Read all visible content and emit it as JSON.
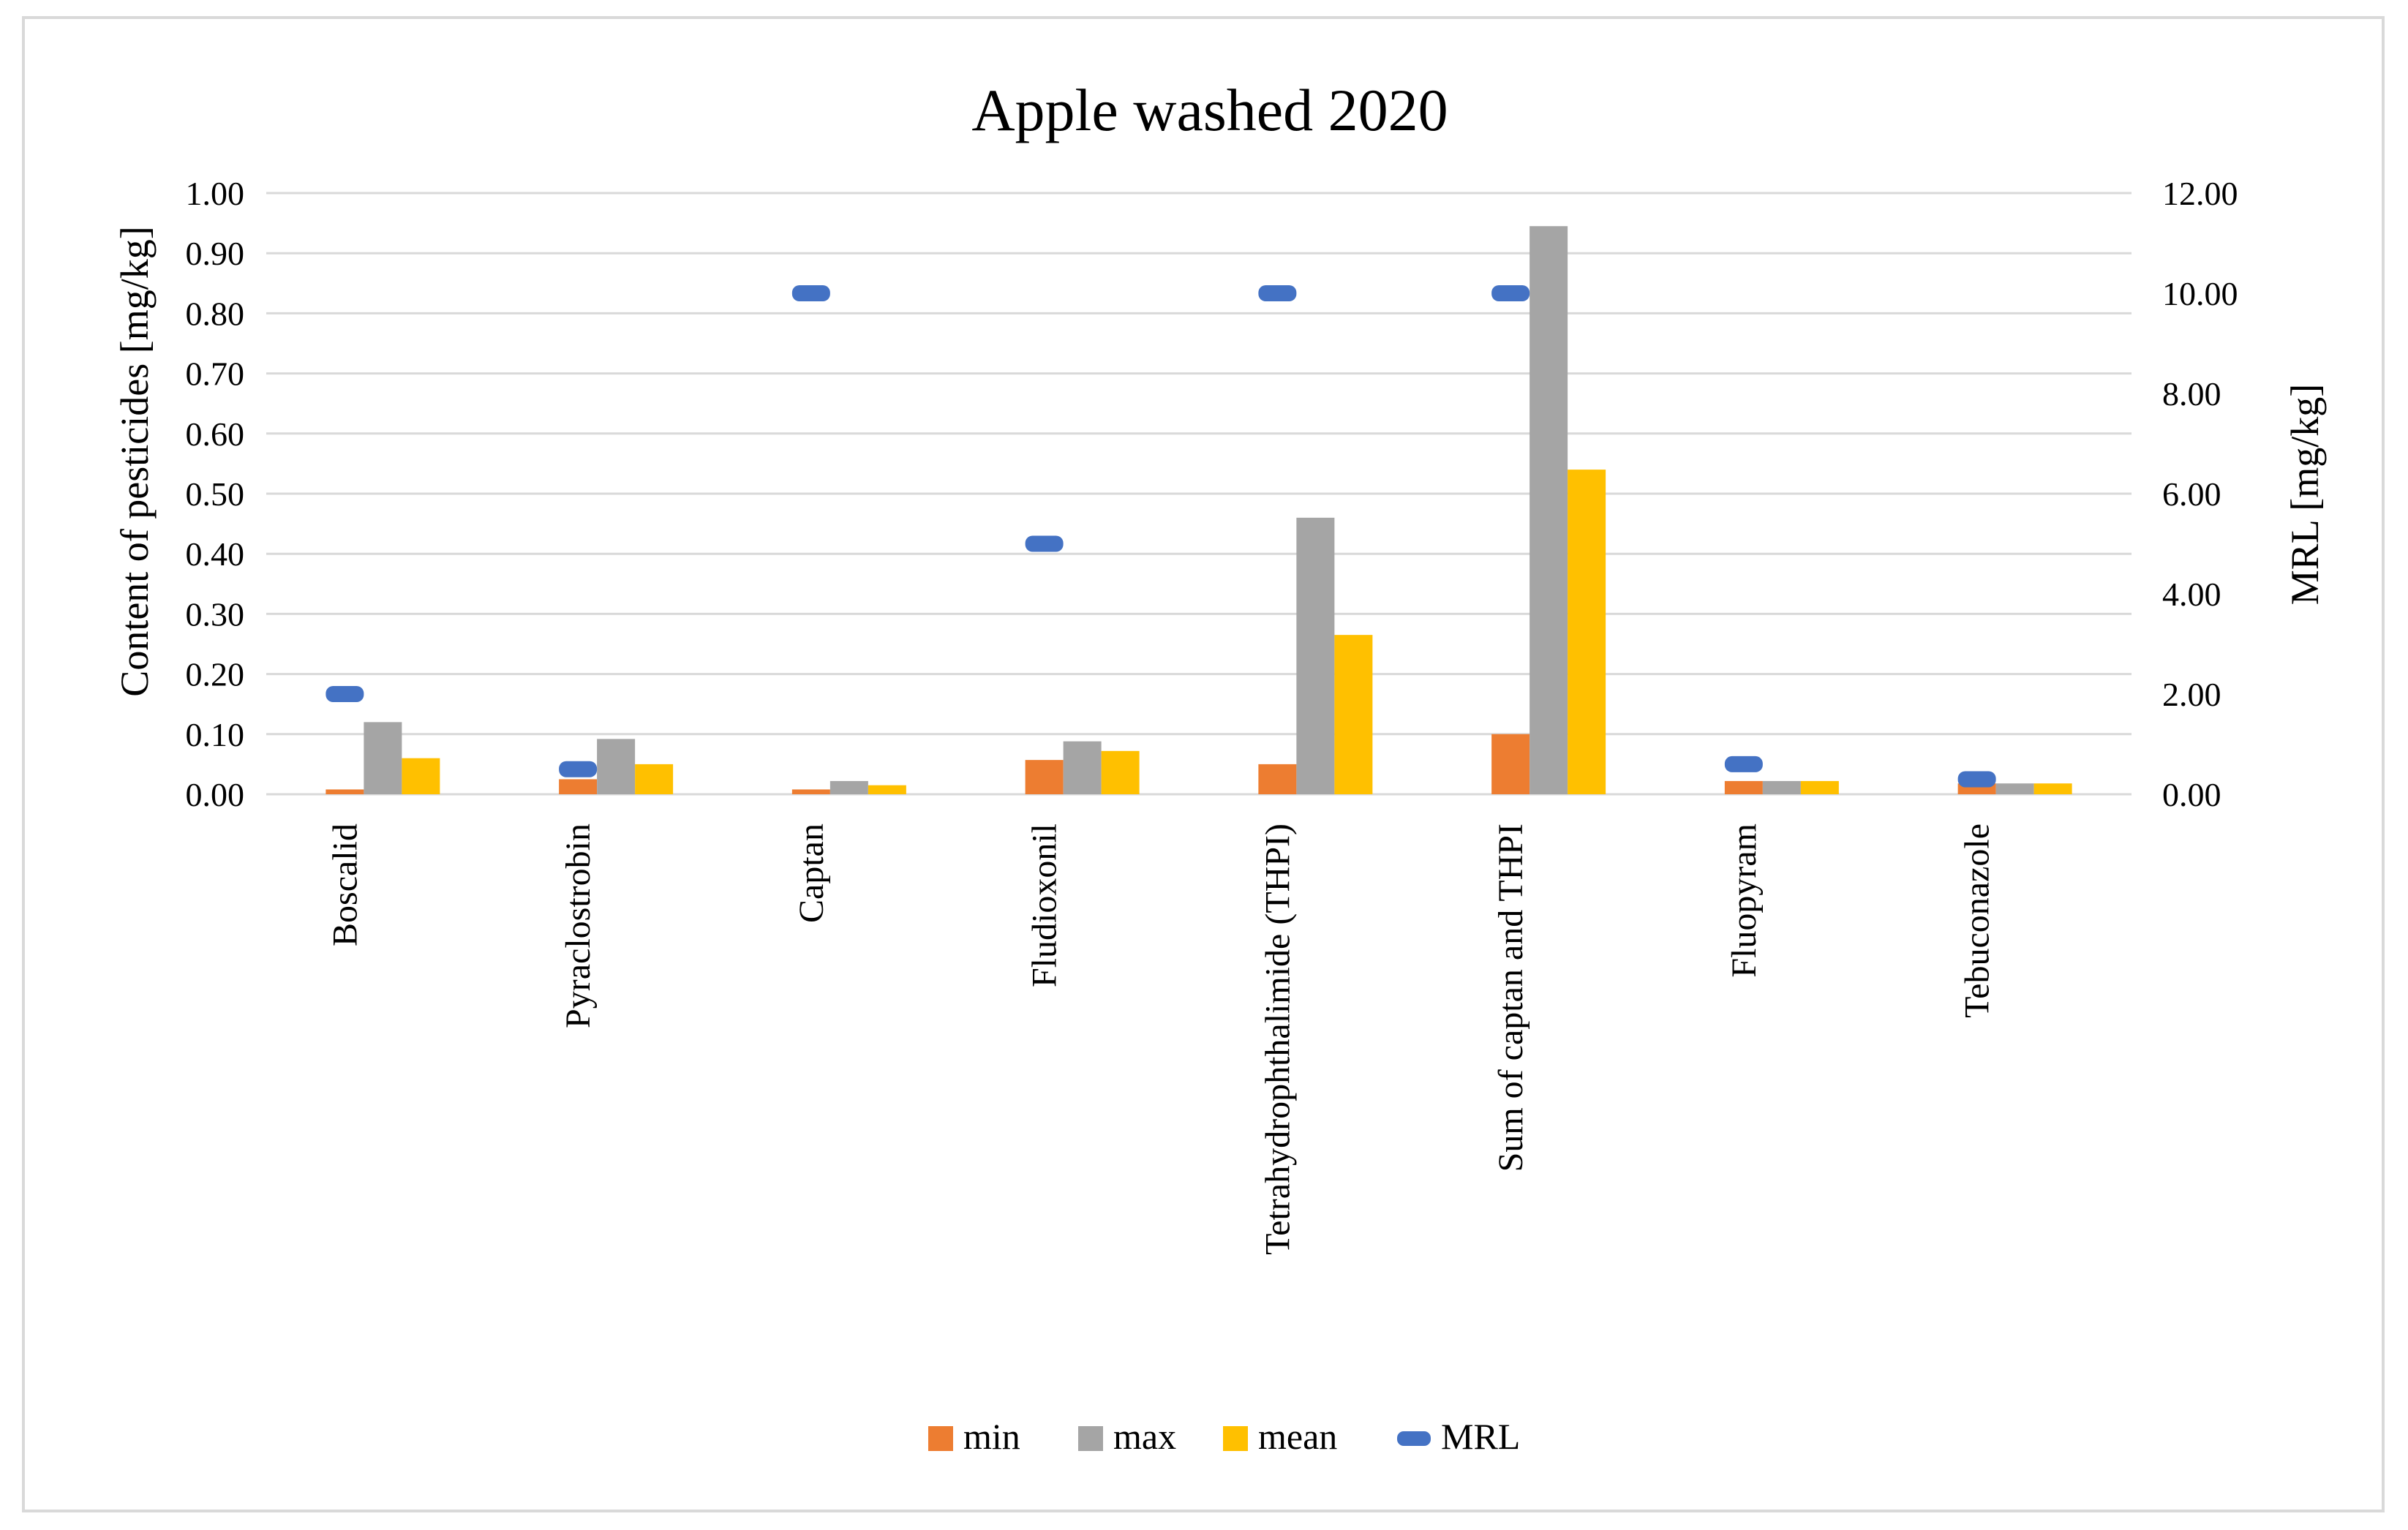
{
  "chart_data": {
    "type": "bar",
    "title": "Apple washed 2020",
    "ylabel": "Content of pesticides [mg/kg]",
    "y2label": "MRL [mg/kg]",
    "ylim": [
      0,
      1.0
    ],
    "y2lim": [
      0,
      12.0
    ],
    "yticks": [
      "0.00",
      "0.10",
      "0.20",
      "0.30",
      "0.40",
      "0.50",
      "0.60",
      "0.70",
      "0.80",
      "0.90",
      "1.00"
    ],
    "y2ticks": [
      "0.00",
      "2.00",
      "4.00",
      "6.00",
      "8.00",
      "10.00",
      "12.00"
    ],
    "grid": true,
    "legend_position": "bottom",
    "categories": [
      "Boscalid",
      "Pyraclostrobin",
      "Captan",
      "Fludioxonil",
      "Tetrahydrophthalimide (THPI)",
      "Sum of captan and THPI",
      "Fluopyram",
      "Tebuconazole"
    ],
    "series": [
      {
        "name": "min",
        "type": "bar",
        "axis": "left",
        "color": "#ED7D31",
        "values": [
          0.008,
          0.025,
          0.008,
          0.057,
          0.05,
          0.1,
          0.022,
          0.018
        ]
      },
      {
        "name": "max",
        "type": "bar",
        "axis": "left",
        "color": "#A5A5A5",
        "values": [
          0.12,
          0.092,
          0.022,
          0.088,
          0.46,
          0.945,
          0.022,
          0.018
        ]
      },
      {
        "name": "mean",
        "type": "bar",
        "axis": "left",
        "color": "#FFC000",
        "values": [
          0.06,
          0.05,
          0.015,
          0.072,
          0.265,
          0.54,
          0.022,
          0.018
        ]
      },
      {
        "name": "MRL",
        "type": "marker",
        "axis": "right",
        "color": "#4472C4",
        "values": [
          2.0,
          0.5,
          10.0,
          5.0,
          10.0,
          10.0,
          0.6,
          0.3
        ]
      }
    ]
  }
}
